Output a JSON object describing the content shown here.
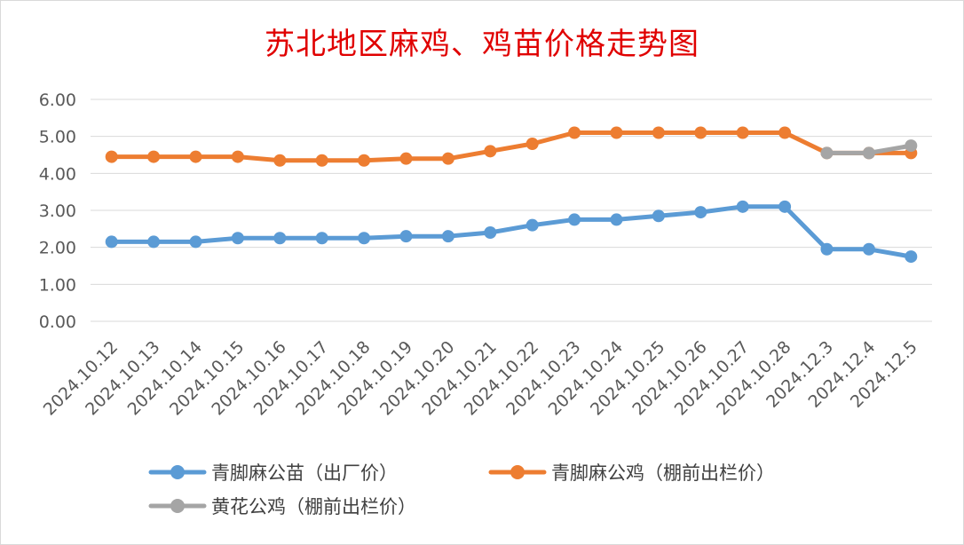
{
  "chart_data": {
    "type": "line",
    "title": "苏北地区麻鸡、鸡苗价格走势图",
    "xlabel": "",
    "ylabel": "",
    "ylim": [
      0,
      6
    ],
    "yticks": [
      "0.00",
      "1.00",
      "2.00",
      "3.00",
      "4.00",
      "5.00",
      "6.00"
    ],
    "grid": true,
    "legend_position": "bottom",
    "categories": [
      "2024.10.12",
      "2024.10.13",
      "2024.10.14",
      "2024.10.15",
      "2024.10.16",
      "2024.10.17",
      "2024.10.18",
      "2024.10.19",
      "2024.10.20",
      "2024.10.21",
      "2024.10.22",
      "2024.10.23",
      "2024.10.24",
      "2024.10.25",
      "2024.10.26",
      "2024.10.27",
      "2024.10.28",
      "2024.12.3",
      "2024.12.4",
      "2024.12.5"
    ],
    "series": [
      {
        "name": "青脚麻公苗（出厂价）",
        "color": "#5b9bd5",
        "values": [
          2.15,
          2.15,
          2.15,
          2.25,
          2.25,
          2.25,
          2.25,
          2.3,
          2.3,
          2.4,
          2.6,
          2.75,
          2.75,
          2.85,
          2.95,
          3.1,
          3.1,
          1.95,
          1.95,
          1.75
        ]
      },
      {
        "name": "青脚麻公鸡（棚前出栏价）",
        "color": "#ed7d31",
        "values": [
          4.45,
          4.45,
          4.45,
          4.45,
          4.35,
          4.35,
          4.35,
          4.4,
          4.4,
          4.6,
          4.8,
          5.1,
          5.1,
          5.1,
          5.1,
          5.1,
          5.1,
          4.55,
          4.55,
          4.55
        ]
      },
      {
        "name": "黄花公鸡（棚前出栏价）",
        "color": "#a5a5a5",
        "values": [
          null,
          null,
          null,
          null,
          null,
          null,
          null,
          null,
          null,
          null,
          null,
          null,
          null,
          null,
          null,
          null,
          null,
          4.55,
          4.55,
          4.75
        ]
      }
    ]
  }
}
